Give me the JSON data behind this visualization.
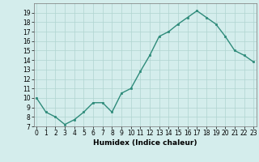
{
  "x": [
    0,
    1,
    2,
    3,
    4,
    5,
    6,
    7,
    8,
    9,
    10,
    11,
    12,
    13,
    14,
    15,
    16,
    17,
    18,
    19,
    20,
    21,
    22,
    23
  ],
  "y": [
    10.0,
    8.5,
    8.0,
    7.2,
    7.7,
    8.5,
    9.5,
    9.5,
    8.5,
    10.5,
    11.0,
    12.8,
    14.5,
    16.5,
    17.0,
    17.8,
    18.5,
    19.2,
    18.5,
    17.8,
    16.5,
    15.0,
    14.5,
    13.8
  ],
  "line_color": "#2e8b7a",
  "marker_color": "#2e8b7a",
  "bg_color": "#d4edec",
  "grid_color": "#b0d4d0",
  "xlabel": "Humidex (Indice chaleur)",
  "ylim": [
    7,
    20
  ],
  "xlim": [
    -0.3,
    23.3
  ],
  "yticks": [
    7,
    8,
    9,
    10,
    11,
    12,
    13,
    14,
    15,
    16,
    17,
    18,
    19
  ],
  "xticks": [
    0,
    1,
    2,
    3,
    4,
    5,
    6,
    7,
    8,
    9,
    10,
    11,
    12,
    13,
    14,
    15,
    16,
    17,
    18,
    19,
    20,
    21,
    22,
    23
  ],
  "xtick_labels": [
    "0",
    "1",
    "2",
    "3",
    "4",
    "5",
    "6",
    "7",
    "8",
    "9",
    "10",
    "11",
    "12",
    "13",
    "14",
    "15",
    "16",
    "17",
    "18",
    "19",
    "20",
    "21",
    "22",
    "23"
  ],
  "label_fontsize": 6.0,
  "tick_fontsize": 5.5,
  "xlabel_fontsize": 6.5,
  "linewidth": 1.0,
  "markersize": 2.0
}
